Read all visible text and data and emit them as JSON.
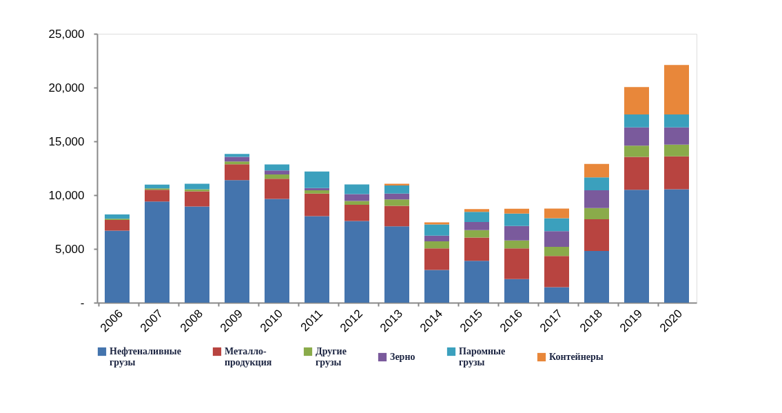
{
  "chart_data": {
    "type": "bar",
    "stacked": true,
    "categories": [
      "2006",
      "2007",
      "2008",
      "2009",
      "2010",
      "2011",
      "2012",
      "2013",
      "2014",
      "2015",
      "2016",
      "2017",
      "2018",
      "2019",
      "2020"
    ],
    "series": [
      {
        "name": "Нефтеналивные\nгрузы",
        "color": "#4474ad",
        "values": [
          6700,
          9400,
          8950,
          11400,
          9650,
          8050,
          7600,
          7100,
          3050,
          3900,
          2200,
          1450,
          4800,
          10500,
          10550
        ]
      },
      {
        "name": "Металло-\nпродукция",
        "color": "#b84440",
        "values": [
          1000,
          1100,
          1400,
          1470,
          1870,
          2100,
          1500,
          1900,
          2000,
          2150,
          2850,
          2900,
          2950,
          3050,
          3050
        ]
      },
      {
        "name": "Другие\nгрузы",
        "color": "#8aab4a",
        "values": [
          100,
          120,
          200,
          250,
          400,
          300,
          350,
          600,
          650,
          700,
          730,
          850,
          1050,
          1050,
          1100
        ]
      },
      {
        "name": "Зерно",
        "color": "#7a5a9c",
        "values": [
          0,
          null,
          null,
          430,
          370,
          200,
          650,
          550,
          530,
          750,
          1350,
          1450,
          1650,
          1700,
          1600
        ]
      },
      {
        "name": "Паромные\nгрузы",
        "color": "#3ba0bd",
        "values": [
          400,
          350,
          500,
          280,
          570,
          1550,
          900,
          750,
          1050,
          950,
          1150,
          1200,
          1200,
          1200,
          1200
        ]
      },
      {
        "name": "Контейнеры",
        "color": "#e8873a",
        "values": [
          0,
          0,
          0,
          0,
          0,
          0,
          0,
          150,
          180,
          250,
          450,
          900,
          1250,
          2550,
          4600
        ]
      }
    ],
    "ylim": [
      0,
      25000
    ],
    "yticks": [
      {
        "value": 0,
        "label": "-"
      },
      {
        "value": 5000,
        "label": "5,000"
      },
      {
        "value": 10000,
        "label": "10,000"
      },
      {
        "value": 15000,
        "label": "15,000"
      },
      {
        "value": 20000,
        "label": "20,000"
      },
      {
        "value": 25000,
        "label": "25,000"
      }
    ],
    "grid": false,
    "legend": "bottom"
  }
}
